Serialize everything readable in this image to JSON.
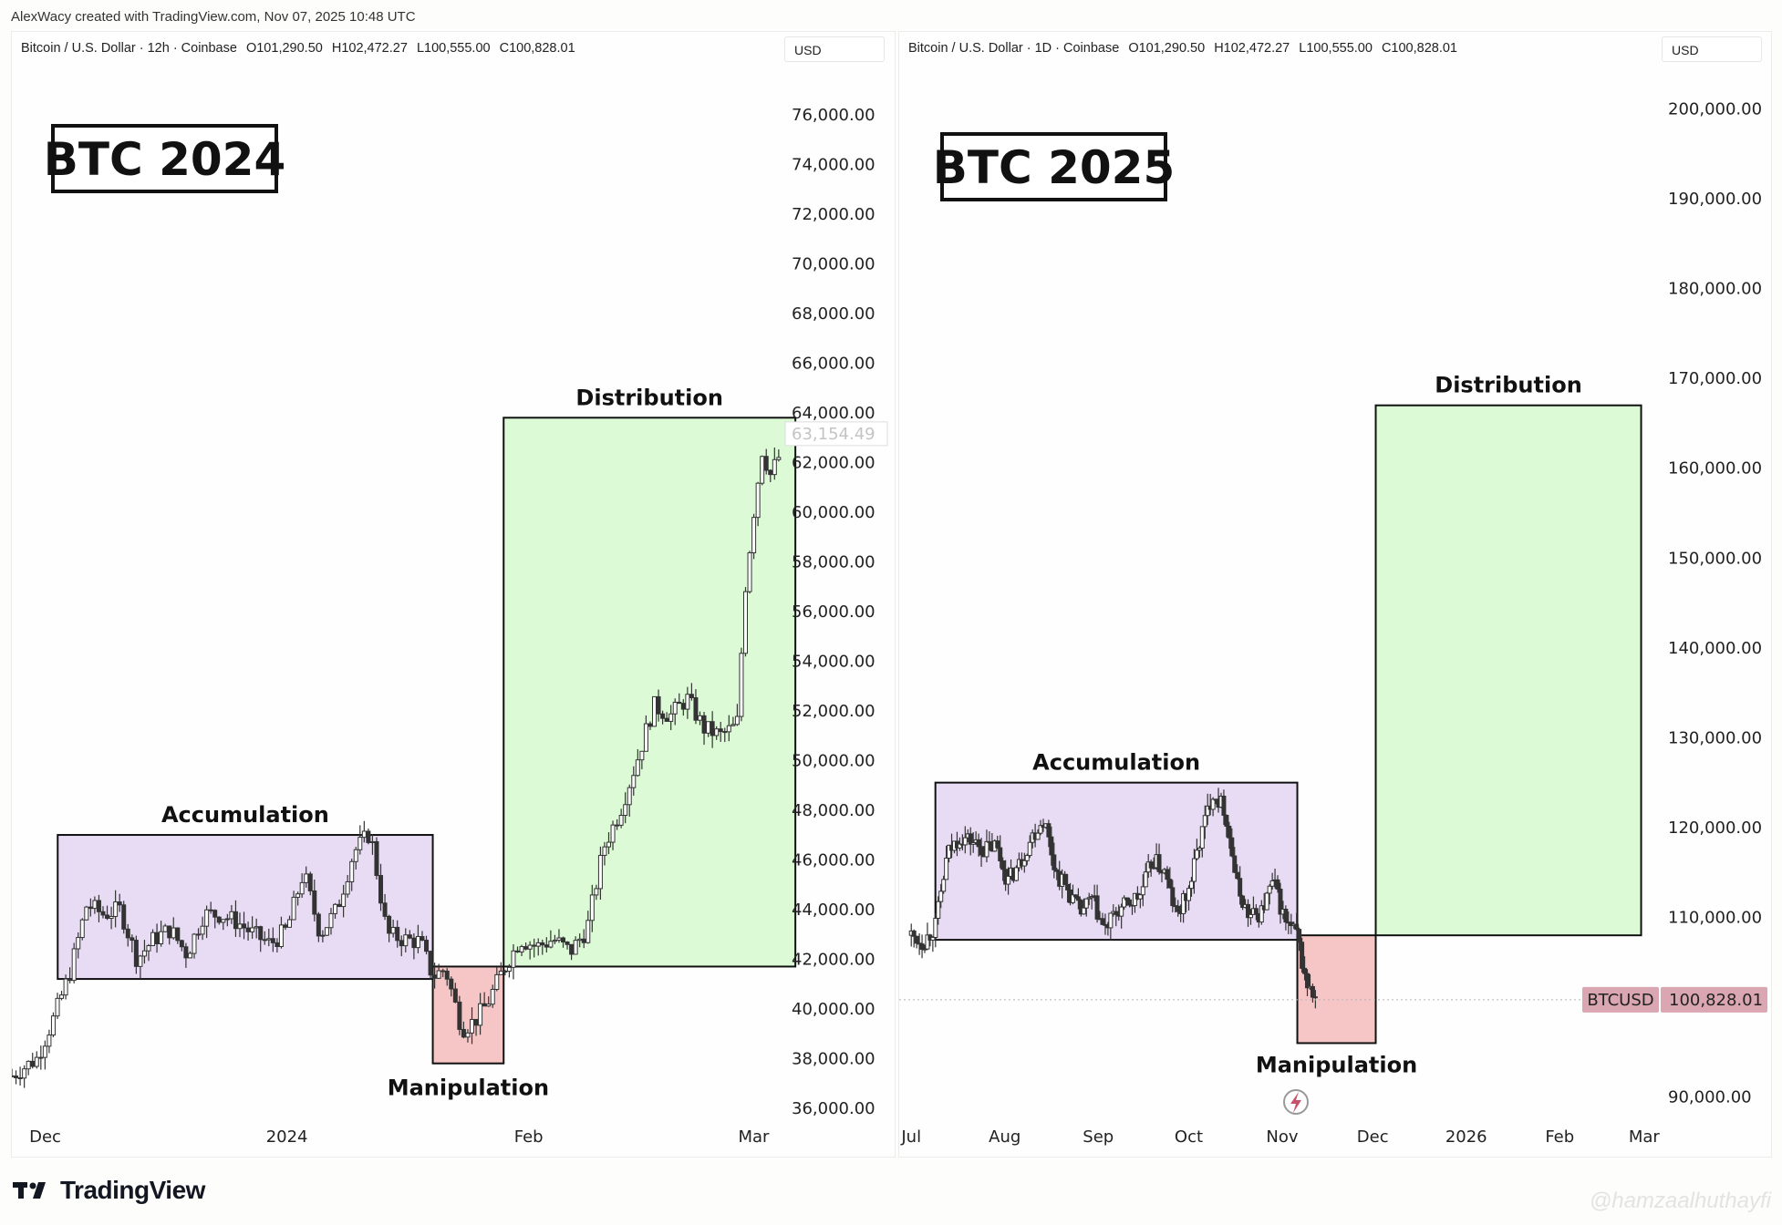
{
  "credit": "AlexWacy created with TradingView.com, Nov 07, 2025 10:48 UTC",
  "footer": {
    "brand": "TradingView",
    "watermark": "@hamzaalhuthayfi"
  },
  "chart_data": [
    {
      "type": "candlestick",
      "legend": {
        "symbol": "Bitcoin / U.S. Dollar · 12h · Coinbase",
        "open": "O101,290.50",
        "high": "H102,472.27",
        "low": "L100,555.00",
        "close": "C100,828.01"
      },
      "currency": "USD",
      "title": "BTC 2024",
      "ylim": [
        35000,
        77500
      ],
      "y_ticks": [
        "76,000.00",
        "74,000.00",
        "72,000.00",
        "70,000.00",
        "68,000.00",
        "66,000.00",
        "64,000.00",
        "62,000.00",
        "60,000.00",
        "58,000.00",
        "56,000.00",
        "54,000.00",
        "52,000.00",
        "50,000.00",
        "48,000.00",
        "46,000.00",
        "44,000.00",
        "42,000.00",
        "40,000.00",
        "38,000.00",
        "36,000.00"
      ],
      "x_labels": [
        {
          "label": "Dec",
          "t": 4
        },
        {
          "label": "2024",
          "t": 33
        },
        {
          "label": "Feb",
          "t": 62
        },
        {
          "label": "Mar",
          "t": 89
        }
      ],
      "xlim": [
        0,
        93
      ],
      "price_marker": {
        "label": "63,154.49",
        "value": 63154.49
      },
      "zones": [
        {
          "name": "Accumulation",
          "x0": 5.5,
          "x1": 50.5,
          "y0": 41200,
          "y1": 47000,
          "color": "#e8dcf4"
        },
        {
          "name": "Manipulation",
          "x0": 50.5,
          "x1": 59,
          "y0": 37800,
          "y1": 41700,
          "color": "#f6c6c6"
        },
        {
          "name": "Distribution",
          "x0": 59,
          "x1": 94,
          "y0": 41700,
          "y1": 63800,
          "color": "#dcfad6"
        }
      ],
      "close_path": [
        [
          0,
          37300
        ],
        [
          3,
          38000
        ],
        [
          5,
          39600
        ],
        [
          7,
          41500
        ],
        [
          9,
          44200
        ],
        [
          11,
          43800
        ],
        [
          13,
          44000
        ],
        [
          15,
          42000
        ],
        [
          17,
          42800
        ],
        [
          19,
          43200
        ],
        [
          21,
          42200
        ],
        [
          23,
          43800
        ],
        [
          25,
          43800
        ],
        [
          27,
          43500
        ],
        [
          29,
          43000
        ],
        [
          31,
          42600
        ],
        [
          33,
          43200
        ],
        [
          35,
          45500
        ],
        [
          37,
          43000
        ],
        [
          39,
          44000
        ],
        [
          41,
          46300
        ],
        [
          43,
          47100
        ],
        [
          45,
          43000
        ],
        [
          47,
          42800
        ],
        [
          49,
          42700
        ],
        [
          50.5,
          41300
        ],
        [
          52,
          41600
        ],
        [
          54,
          39200
        ],
        [
          55.5,
          39500
        ],
        [
          57,
          40200
        ],
        [
          59,
          41600
        ],
        [
          61,
          42800
        ],
        [
          63,
          42500
        ],
        [
          65,
          42800
        ],
        [
          67,
          42300
        ],
        [
          69,
          43200
        ],
        [
          71,
          46500
        ],
        [
          73,
          48000
        ],
        [
          75,
          50000
        ],
        [
          77,
          52200
        ],
        [
          79,
          51800
        ],
        [
          81,
          52500
        ],
        [
          83,
          51300
        ],
        [
          85,
          51000
        ],
        [
          87,
          51400
        ],
        [
          88,
          57000
        ],
        [
          89,
          60000
        ],
        [
          90,
          62500
        ],
        [
          91,
          61500
        ],
        [
          92,
          62200
        ]
      ]
    },
    {
      "type": "candlestick",
      "legend": {
        "symbol": "Bitcoin / U.S. Dollar · 1D · Coinbase",
        "open": "O101,290.50",
        "high": "H102,472.27",
        "low": "L100,555.00",
        "close": "C100,828.01"
      },
      "currency": "USD",
      "title": "BTC 2025",
      "ylim": [
        86000,
        203500
      ],
      "y_ticks": [
        "200,000.00",
        "190,000.00",
        "180,000.00",
        "170,000.00",
        "160,000.00",
        "150,000.00",
        "140,000.00",
        "130,000.00",
        "120,000.00",
        "110,000.00",
        "90,000.00"
      ],
      "x_labels": [
        {
          "label": "Jul",
          "t": 0
        },
        {
          "label": "Aug",
          "t": 31
        },
        {
          "label": "Sep",
          "t": 62
        },
        {
          "label": "Oct",
          "t": 92
        },
        {
          "label": "Nov",
          "t": 123
        },
        {
          "label": "Dec",
          "t": 153
        },
        {
          "label": "2026",
          "t": 184
        },
        {
          "label": "Feb",
          "t": 215
        },
        {
          "label": "Mar",
          "t": 243
        }
      ],
      "xlim": [
        -4,
        250
      ],
      "last_price": {
        "symbol": "BTCUSD",
        "label": "100,828.01",
        "value": 100828.01
      },
      "zones": [
        {
          "name": "Accumulation",
          "x0": 8,
          "x1": 128,
          "y0": 107500,
          "y1": 125000,
          "color": "#e8dcf4"
        },
        {
          "name": "Manipulation",
          "x0": 128,
          "x1": 154,
          "y0": 96000,
          "y1": 108000,
          "color": "#f6c6c6"
        },
        {
          "name": "Distribution",
          "x0": 154,
          "x1": 242,
          "y0": 108000,
          "y1": 167000,
          "color": "#dcfad6"
        }
      ],
      "close_path": [
        [
          0,
          108000
        ],
        [
          4,
          107200
        ],
        [
          8,
          109000
        ],
        [
          12,
          117000
        ],
        [
          16,
          119000
        ],
        [
          20,
          118500
        ],
        [
          24,
          117500
        ],
        [
          28,
          118000
        ],
        [
          32,
          114000
        ],
        [
          36,
          116000
        ],
        [
          40,
          119000
        ],
        [
          44,
          121000
        ],
        [
          48,
          115000
        ],
        [
          52,
          113000
        ],
        [
          56,
          110500
        ],
        [
          60,
          112000
        ],
        [
          64,
          108500
        ],
        [
          68,
          110500
        ],
        [
          72,
          111500
        ],
        [
          76,
          112500
        ],
        [
          80,
          116500
        ],
        [
          84,
          115000
        ],
        [
          88,
          110000
        ],
        [
          92,
          113000
        ],
        [
          96,
          119000
        ],
        [
          100,
          124000
        ],
        [
          104,
          122000
        ],
        [
          108,
          113500
        ],
        [
          112,
          110000
        ],
        [
          116,
          110500
        ],
        [
          120,
          114000
        ],
        [
          124,
          109500
        ],
        [
          128,
          108000
        ],
        [
          130,
          104000
        ],
        [
          132,
          101800
        ],
        [
          134,
          100900
        ]
      ]
    }
  ]
}
